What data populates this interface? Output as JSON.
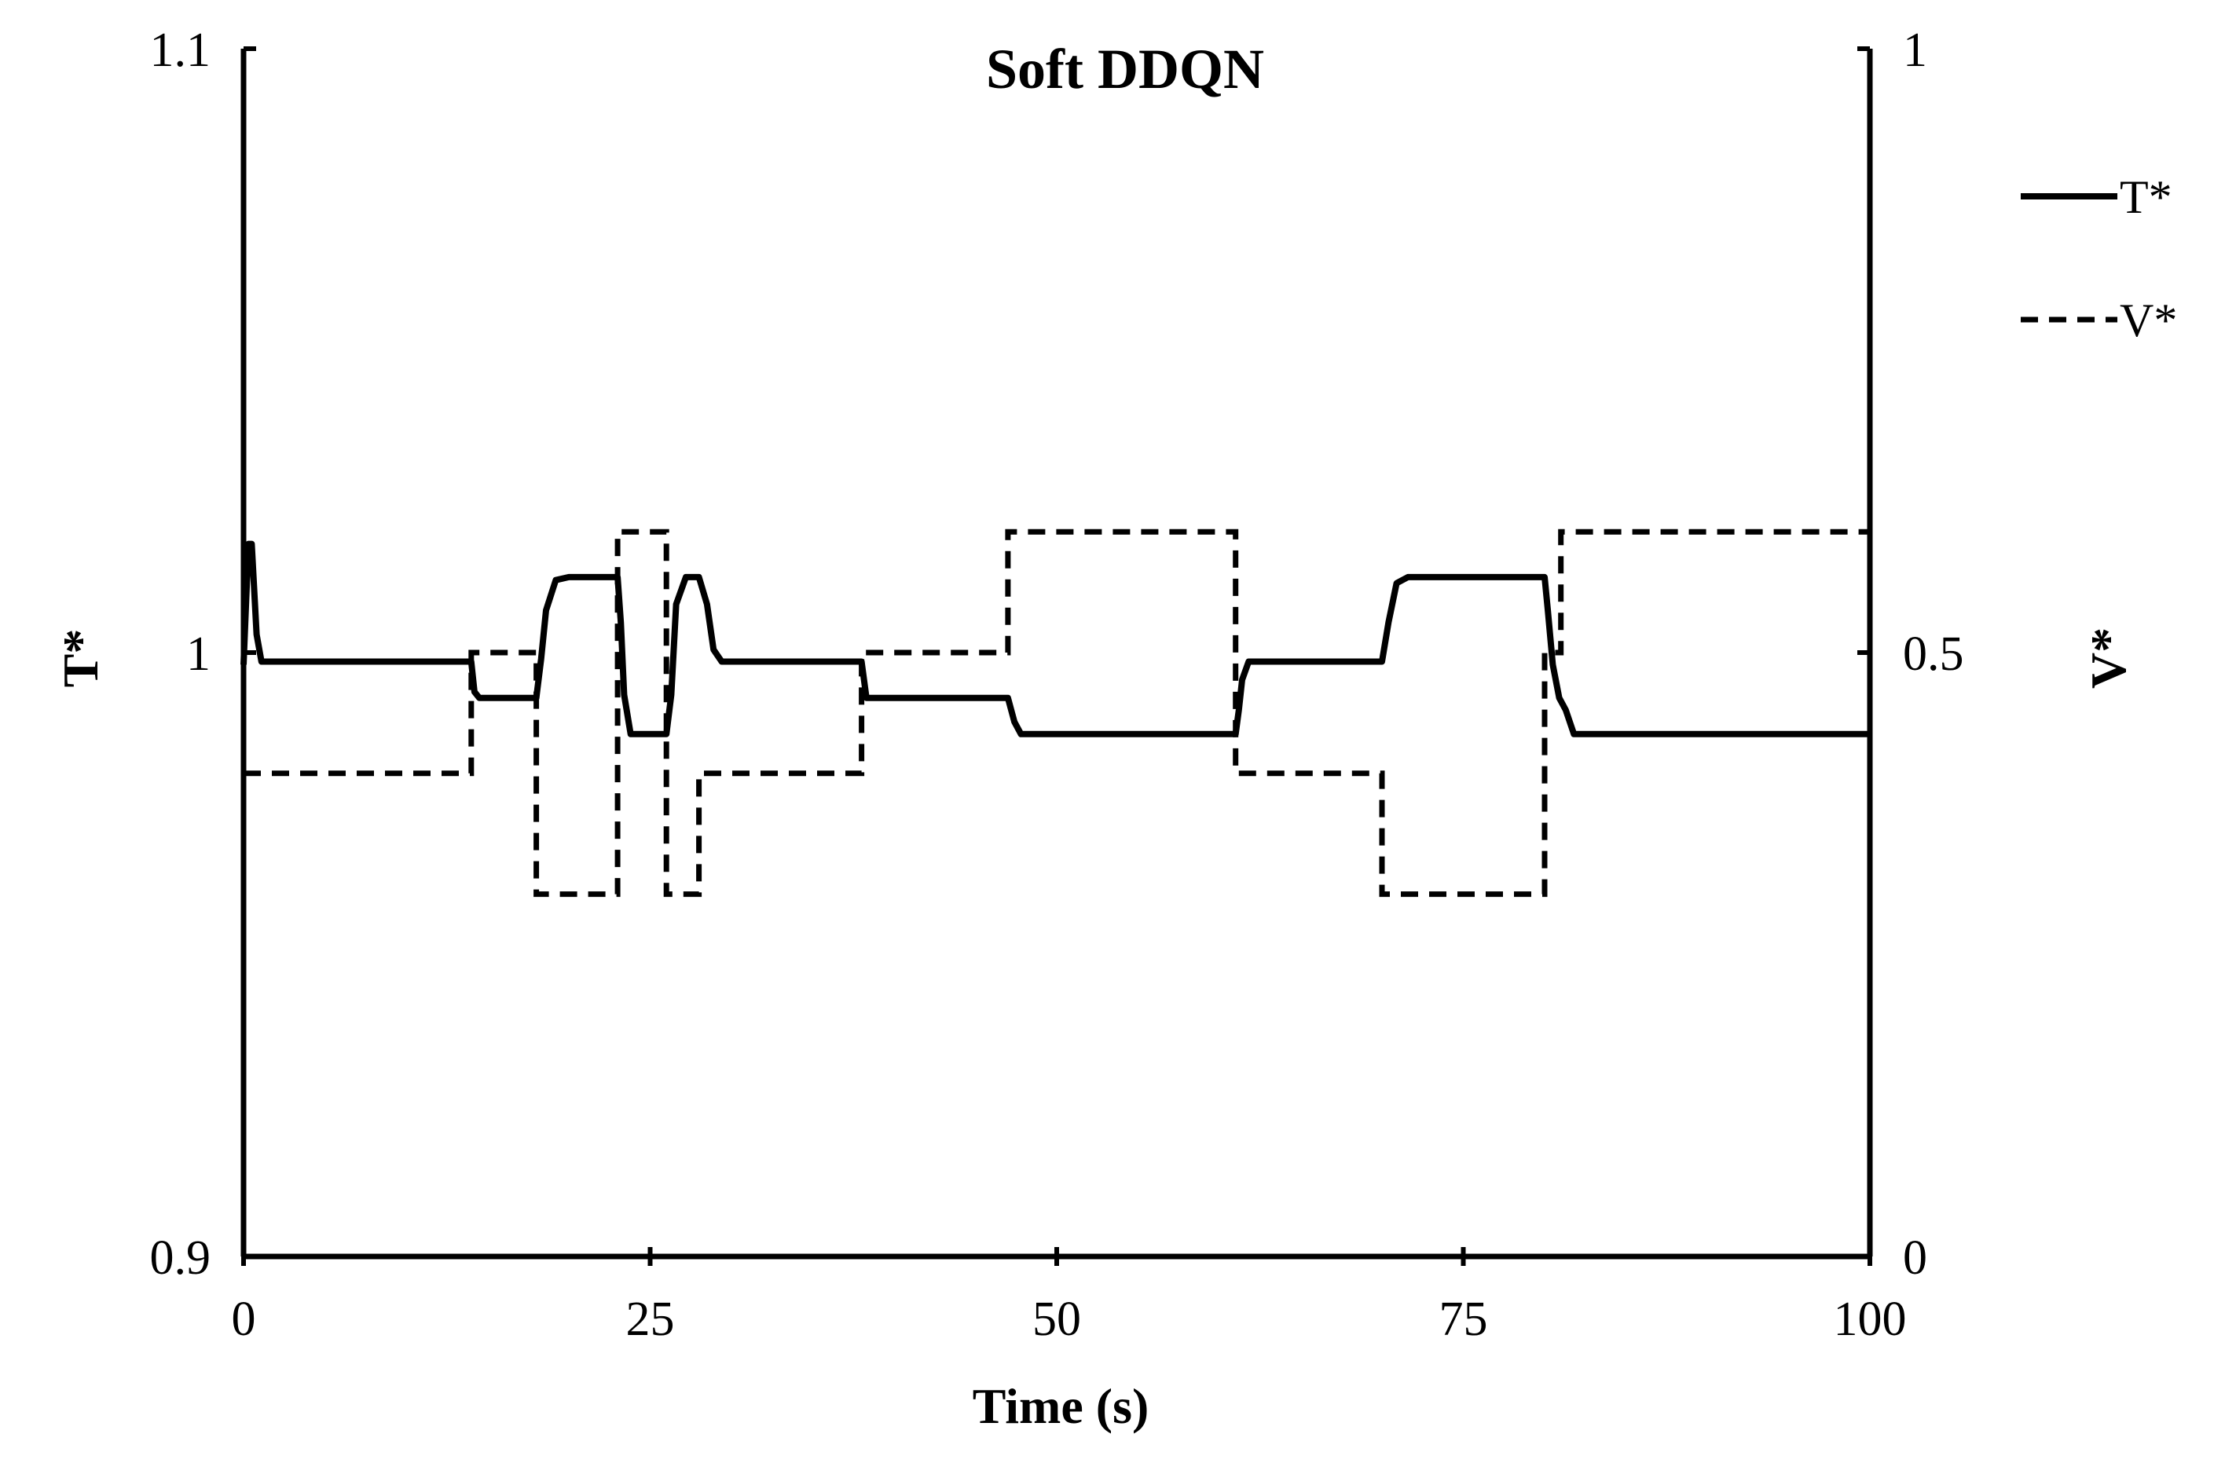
{
  "chart_data": {
    "type": "line",
    "title": "Soft DDQN",
    "xlabel": "Time (s)",
    "ylabel_left": "T*",
    "ylabel_right": "V*",
    "xlim": [
      0,
      100
    ],
    "ylim_left": [
      0.9,
      1.1
    ],
    "ylim_right": [
      0,
      1
    ],
    "x_ticks": [
      "0",
      "25",
      "50",
      "75",
      "100"
    ],
    "y_left_ticks": [
      "0.9",
      "1",
      "1.1"
    ],
    "y_right_ticks": [
      "0",
      "0.5",
      "1"
    ],
    "grid": false,
    "legend_position": "top-right",
    "series": [
      {
        "name": "T*",
        "axis": "left",
        "style": "solid",
        "color": "#000000",
        "x": [
          0,
          0.3,
          0.5,
          0.8,
          1.1,
          1.5,
          14.0,
          14.2,
          14.5,
          18.0,
          18.3,
          18.6,
          19.2,
          20.0,
          23.0,
          23.2,
          23.4,
          23.8,
          26.0,
          26.3,
          26.6,
          27.2,
          28.0,
          28.5,
          28.9,
          29.4,
          38.0,
          38.3,
          38.6,
          47.0,
          47.4,
          47.8,
          61.0,
          61.2,
          61.4,
          61.8,
          70.0,
          70.4,
          70.9,
          71.6,
          80.0,
          80.2,
          80.5,
          80.9,
          81.3,
          81.8,
          100
        ],
        "y": [
          0.998,
          1.018,
          1.018,
          1.003,
          0.9985,
          0.9985,
          0.9985,
          0.9935,
          0.9925,
          0.9925,
          0.999,
          1.007,
          1.012,
          1.0125,
          1.0125,
          1.005,
          0.993,
          0.9865,
          0.9865,
          0.993,
          1.008,
          1.0125,
          1.0125,
          1.008,
          1.0005,
          0.9985,
          0.9985,
          0.9925,
          0.9925,
          0.9925,
          0.9885,
          0.9865,
          0.9865,
          0.9905,
          0.9955,
          0.9985,
          0.9985,
          1.005,
          1.0115,
          1.0125,
          1.0125,
          1.007,
          0.998,
          0.9925,
          0.9905,
          0.9865,
          0.9865
        ]
      },
      {
        "name": "V*",
        "axis": "right",
        "style": "dashed",
        "color": "#000000",
        "x": [
          0,
          14,
          14,
          18,
          18,
          23,
          23,
          26,
          26,
          28,
          28,
          38,
          38,
          47,
          47,
          61,
          61,
          70,
          70,
          80,
          80,
          81,
          81,
          100
        ],
        "y": [
          0.4,
          0.4,
          0.5,
          0.5,
          0.3,
          0.3,
          0.6,
          0.6,
          0.3,
          0.3,
          0.4,
          0.4,
          0.5,
          0.5,
          0.6,
          0.6,
          0.4,
          0.4,
          0.3,
          0.3,
          0.5,
          0.5,
          0.6,
          0.6
        ]
      }
    ]
  }
}
